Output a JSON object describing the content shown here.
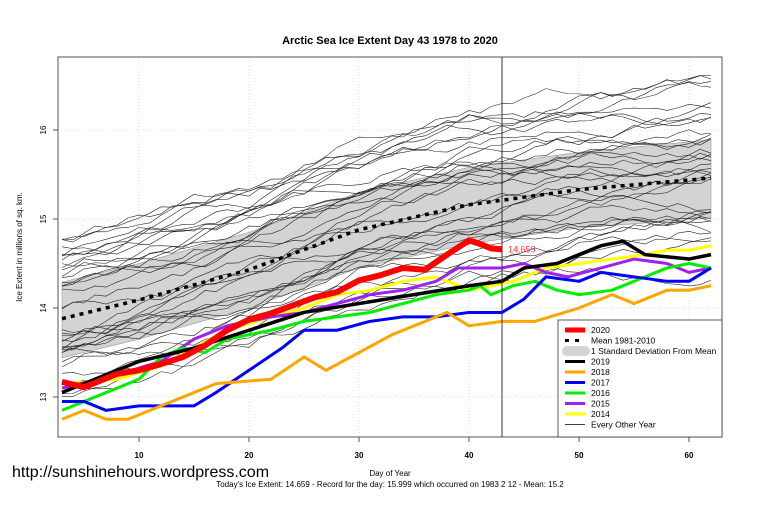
{
  "chart_data": {
    "type": "line",
    "title": "Arctic Sea Ice Extent Day 43 1978 to 2020",
    "xlabel": "Day of Year",
    "ylabel": "Ice Extent in millions of sq. km.",
    "xlim": [
      3,
      62
    ],
    "ylim": [
      12.6,
      16.85
    ],
    "xticks": [
      10,
      20,
      30,
      40,
      50,
      60
    ],
    "yticks": [
      13,
      14,
      15,
      16
    ],
    "grid": true,
    "legend_position": "bottom-right",
    "current_day": 43,
    "current_value_label": "14.659",
    "footer": "Today's Ice Extent: 14.659  - Record for the day: 15.999 which occurred on 1983 2 12  - Mean: 15.2",
    "watermark": "http://sunshinehours.wordpress.com",
    "sd_band": {
      "name": "1 Standard Deviation From Mean",
      "color": "#d3d3d3",
      "upper": [
        [
          3,
          14.29
        ],
        [
          10,
          14.5
        ],
        [
          20,
          14.85
        ],
        [
          30,
          15.3
        ],
        [
          40,
          15.58
        ],
        [
          50,
          15.75
        ],
        [
          62,
          15.89
        ]
      ],
      "lower": [
        [
          3,
          13.44
        ],
        [
          10,
          13.65
        ],
        [
          20,
          14.0
        ],
        [
          30,
          14.45
        ],
        [
          40,
          14.72
        ],
        [
          50,
          14.9
        ],
        [
          62,
          15.01
        ]
      ]
    },
    "series": [
      {
        "name": "2020",
        "color": "#ff0000",
        "width": 6,
        "points": [
          [
            3,
            13.17
          ],
          [
            5,
            13.11
          ],
          [
            8,
            13.26
          ],
          [
            10,
            13.3
          ],
          [
            12,
            13.37
          ],
          [
            14,
            13.45
          ],
          [
            16,
            13.58
          ],
          [
            18,
            13.75
          ],
          [
            20,
            13.87
          ],
          [
            22,
            13.94
          ],
          [
            24,
            14.03
          ],
          [
            26,
            14.12
          ],
          [
            28,
            14.18
          ],
          [
            30,
            14.31
          ],
          [
            32,
            14.37
          ],
          [
            34,
            14.45
          ],
          [
            36,
            14.43
          ],
          [
            38,
            14.6
          ],
          [
            40,
            14.76
          ],
          [
            41,
            14.72
          ],
          [
            42,
            14.67
          ],
          [
            43,
            14.659
          ]
        ]
      },
      {
        "name": "Mean 1981-2010",
        "color": "#000000",
        "width": 3.5,
        "dash": "4 5",
        "points": [
          [
            3,
            13.88
          ],
          [
            10,
            14.09
          ],
          [
            20,
            14.43
          ],
          [
            30,
            14.88
          ],
          [
            40,
            15.16
          ],
          [
            50,
            15.33
          ],
          [
            62,
            15.46
          ]
        ]
      },
      {
        "name": "2019",
        "color": "#000000",
        "width": 3.5,
        "points": [
          [
            3,
            13.05
          ],
          [
            10,
            13.4
          ],
          [
            15,
            13.55
          ],
          [
            20,
            13.75
          ],
          [
            25,
            13.95
          ],
          [
            30,
            14.05
          ],
          [
            35,
            14.15
          ],
          [
            40,
            14.25
          ],
          [
            43,
            14.3
          ],
          [
            45,
            14.45
          ],
          [
            48,
            14.5
          ],
          [
            52,
            14.7
          ],
          [
            54,
            14.75
          ],
          [
            56,
            14.6
          ],
          [
            60,
            14.55
          ],
          [
            62,
            14.6
          ]
        ]
      },
      {
        "name": "2018",
        "color": "#ffa500",
        "width": 3,
        "points": [
          [
            3,
            12.75
          ],
          [
            5,
            12.85
          ],
          [
            7,
            12.75
          ],
          [
            9,
            12.75
          ],
          [
            12,
            12.9
          ],
          [
            15,
            13.05
          ],
          [
            17,
            13.15
          ],
          [
            22,
            13.2
          ],
          [
            25,
            13.45
          ],
          [
            27,
            13.3
          ],
          [
            30,
            13.5
          ],
          [
            33,
            13.7
          ],
          [
            36,
            13.85
          ],
          [
            38,
            13.95
          ],
          [
            40,
            13.8
          ],
          [
            43,
            13.85
          ],
          [
            46,
            13.85
          ],
          [
            50,
            14.0
          ],
          [
            53,
            14.15
          ],
          [
            55,
            14.05
          ],
          [
            58,
            14.2
          ],
          [
            60,
            14.2
          ],
          [
            62,
            14.25
          ]
        ]
      },
      {
        "name": "2017",
        "color": "#0000ff",
        "width": 3,
        "points": [
          [
            3,
            12.95
          ],
          [
            5,
            12.95
          ],
          [
            7,
            12.85
          ],
          [
            10,
            12.9
          ],
          [
            12,
            12.9
          ],
          [
            15,
            12.9
          ],
          [
            17,
            13.05
          ],
          [
            20,
            13.3
          ],
          [
            23,
            13.55
          ],
          [
            25,
            13.75
          ],
          [
            28,
            13.75
          ],
          [
            31,
            13.85
          ],
          [
            34,
            13.9
          ],
          [
            37,
            13.9
          ],
          [
            40,
            13.95
          ],
          [
            43,
            13.95
          ],
          [
            45,
            14.1
          ],
          [
            47,
            14.35
          ],
          [
            50,
            14.3
          ],
          [
            52,
            14.4
          ],
          [
            55,
            14.35
          ],
          [
            58,
            14.3
          ],
          [
            60,
            14.3
          ],
          [
            62,
            14.45
          ]
        ]
      },
      {
        "name": "2016",
        "color": "#00ee00",
        "width": 3,
        "points": [
          [
            3,
            12.85
          ],
          [
            5,
            12.95
          ],
          [
            8,
            13.1
          ],
          [
            10,
            13.2
          ],
          [
            12,
            13.45
          ],
          [
            14,
            13.55
          ],
          [
            16,
            13.5
          ],
          [
            18,
            13.65
          ],
          [
            22,
            13.75
          ],
          [
            25,
            13.85
          ],
          [
            28,
            13.9
          ],
          [
            31,
            13.95
          ],
          [
            34,
            14.05
          ],
          [
            37,
            14.15
          ],
          [
            40,
            14.2
          ],
          [
            41,
            14.25
          ],
          [
            42,
            14.15
          ],
          [
            44,
            14.25
          ],
          [
            46,
            14.3
          ],
          [
            48,
            14.2
          ],
          [
            50,
            14.15
          ],
          [
            53,
            14.2
          ],
          [
            55,
            14.3
          ],
          [
            58,
            14.45
          ],
          [
            60,
            14.5
          ],
          [
            62,
            14.45
          ]
        ]
      },
      {
        "name": "2015",
        "color": "#a020f0",
        "width": 3,
        "points": [
          [
            3,
            13.1
          ],
          [
            8,
            13.25
          ],
          [
            12,
            13.4
          ],
          [
            15,
            13.65
          ],
          [
            18,
            13.8
          ],
          [
            22,
            13.9
          ],
          [
            25,
            13.95
          ],
          [
            28,
            14.05
          ],
          [
            31,
            14.15
          ],
          [
            34,
            14.2
          ],
          [
            37,
            14.3
          ],
          [
            39,
            14.45
          ],
          [
            41,
            14.45
          ],
          [
            43,
            14.45
          ],
          [
            45,
            14.5
          ],
          [
            47,
            14.4
          ],
          [
            49,
            14.35
          ],
          [
            52,
            14.45
          ],
          [
            55,
            14.55
          ],
          [
            58,
            14.5
          ],
          [
            60,
            14.4
          ],
          [
            62,
            14.45
          ]
        ]
      },
      {
        "name": "2014",
        "color": "#ffff00",
        "width": 3,
        "points": [
          [
            3,
            13.15
          ],
          [
            8,
            13.2
          ],
          [
            12,
            13.35
          ],
          [
            15,
            13.55
          ],
          [
            18,
            13.75
          ],
          [
            22,
            13.9
          ],
          [
            25,
            14.0
          ],
          [
            28,
            14.15
          ],
          [
            31,
            14.2
          ],
          [
            34,
            14.3
          ],
          [
            37,
            14.35
          ],
          [
            40,
            14.2
          ],
          [
            42,
            14.25
          ],
          [
            44,
            14.3
          ],
          [
            47,
            14.45
          ],
          [
            50,
            14.5
          ],
          [
            53,
            14.55
          ],
          [
            56,
            14.6
          ],
          [
            58,
            14.65
          ],
          [
            60,
            14.65
          ],
          [
            62,
            14.7
          ]
        ]
      }
    ],
    "legend": [
      {
        "label": "2020",
        "color": "#ff0000",
        "kind": "thick"
      },
      {
        "label": "Mean 1981-2010",
        "color": "#000000",
        "kind": "dash"
      },
      {
        "label": "1 Standard Deviation From Mean",
        "color": "#d3d3d3",
        "kind": "band"
      },
      {
        "label": "2019",
        "color": "#000000",
        "kind": "line"
      },
      {
        "label": "2018",
        "color": "#ffa500",
        "kind": "line"
      },
      {
        "label": "2017",
        "color": "#0000ff",
        "kind": "line"
      },
      {
        "label": "2016",
        "color": "#00ee00",
        "kind": "line"
      },
      {
        "label": "2015",
        "color": "#a020f0",
        "kind": "line"
      },
      {
        "label": "2014",
        "color": "#ffff00",
        "kind": "line"
      },
      {
        "label": "Every Other Year",
        "color": "#000000",
        "kind": "thin"
      }
    ]
  }
}
